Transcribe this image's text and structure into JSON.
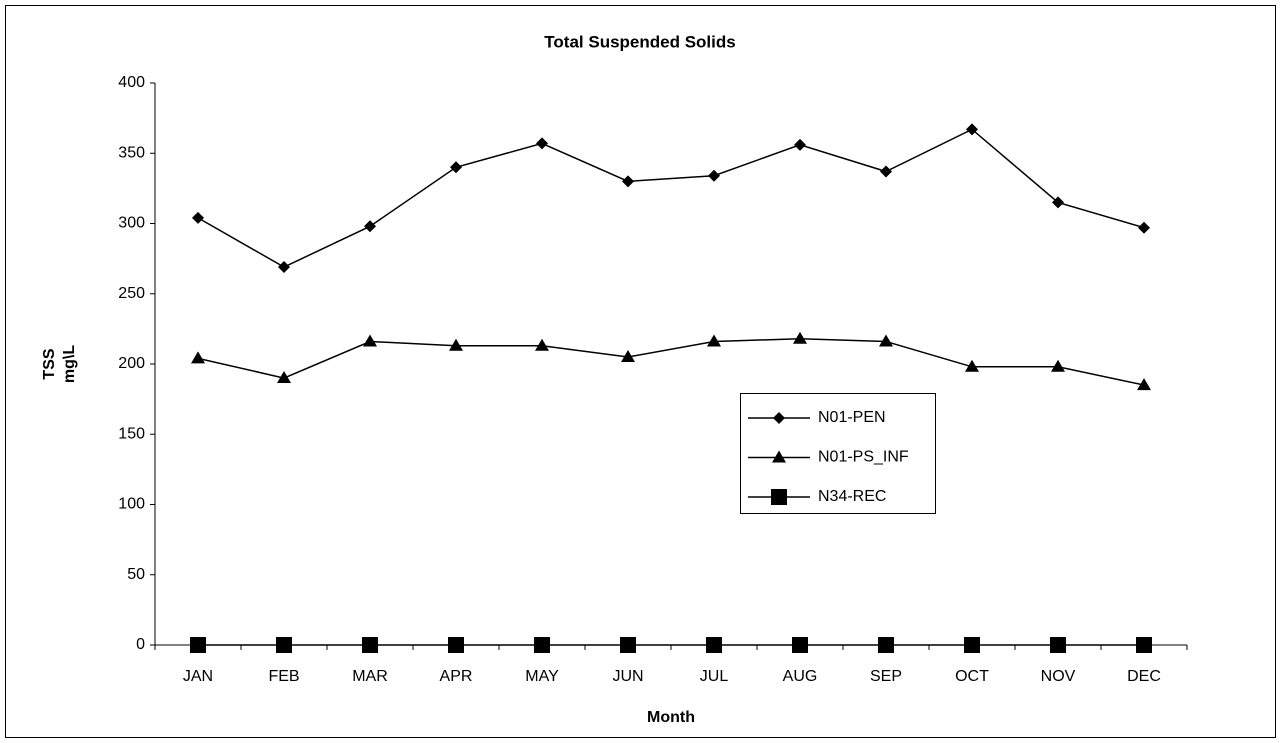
{
  "chart_data": {
    "type": "line",
    "title": "Total Suspended Solids",
    "x_label": "Month",
    "y_label": [
      "TSS",
      "mg\\L"
    ],
    "categories": [
      "JAN",
      "FEB",
      "MAR",
      "APR",
      "MAY",
      "JUN",
      "JUL",
      "AUG",
      "SEP",
      "OCT",
      "NOV",
      "DEC"
    ],
    "series": [
      {
        "name": "N01-PEN",
        "color": "#000000",
        "marker": "diamond",
        "values": [
          304,
          269,
          298,
          340,
          357,
          330,
          334,
          356,
          337,
          367,
          315,
          297
        ]
      },
      {
        "name": "N01-PS_INF",
        "color": "#000000",
        "marker": "triangle",
        "values": [
          204,
          190,
          216,
          213,
          213,
          205,
          216,
          218,
          216,
          198,
          198,
          185
        ]
      },
      {
        "name": "N34-REC",
        "color": "#000000",
        "marker": "square",
        "values": [
          0,
          0,
          0,
          0,
          0,
          0,
          0,
          0,
          0,
          0,
          0,
          0
        ]
      }
    ],
    "ylim": [
      0,
      400
    ],
    "yticks": [
      0,
      50,
      100,
      150,
      200,
      250,
      300,
      350,
      400
    ],
    "grid": false,
    "legend": "right"
  }
}
